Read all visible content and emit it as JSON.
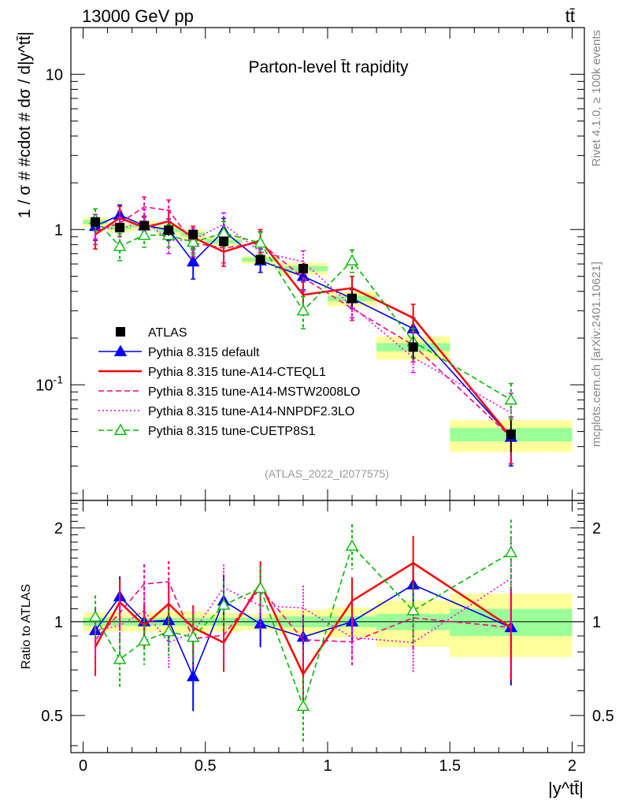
{
  "header": {
    "energy_label": "13000 GeV pp",
    "process_label": "tt̄",
    "side_top": "Rivet 4.1.0, ≥ 100k events",
    "side_bottom": "mcplots.cern.ch [arXiv:2401.10621]"
  },
  "chart_data": {
    "type": "line",
    "title": "Parton-level t̄t rapidity",
    "analysis_tag": "(ATLAS_2022_I2077575)",
    "xlabel": "|y^tt̄|",
    "ylabel": "1 / σ # #cdot # dσ / d|y^tt̄|",
    "ratio_ylabel": "Ratio to ATLAS",
    "xlim": [
      -0.05,
      2.05
    ],
    "ylim": [
      0.018,
      20
    ],
    "yscale": "log",
    "ratio_ylim": [
      0.38,
      2.45
    ],
    "x_ticks": [
      "0",
      "0.5",
      "1",
      "1.5",
      "2"
    ],
    "y_ticks": [
      "10",
      "1",
      "10^-1"
    ],
    "ratio_y_ticks": [
      "0.5",
      "1",
      "2"
    ],
    "bins": [
      [
        0,
        0.1
      ],
      [
        0.1,
        0.2
      ],
      [
        0.2,
        0.3
      ],
      [
        0.3,
        0.4
      ],
      [
        0.4,
        0.5
      ],
      [
        0.5,
        0.65
      ],
      [
        0.65,
        0.8
      ],
      [
        0.8,
        1.0
      ],
      [
        1.0,
        1.2
      ],
      [
        1.2,
        1.5
      ],
      [
        1.5,
        2.0
      ]
    ],
    "x": [
      0.05,
      0.15,
      0.25,
      0.35,
      0.45,
      0.575,
      0.725,
      0.9,
      1.1,
      1.35,
      1.75
    ],
    "data": {
      "name": "ATLAS",
      "values": [
        1.12,
        1.03,
        1.06,
        0.99,
        0.93,
        0.84,
        0.64,
        0.56,
        0.36,
        0.175,
        0.048
      ],
      "rel_stat": [
        0.03,
        0.03,
        0.03,
        0.03,
        0.03,
        0.03,
        0.03,
        0.04,
        0.04,
        0.06,
        0.1
      ],
      "rel_total": [
        0.07,
        0.07,
        0.07,
        0.08,
        0.08,
        0.07,
        0.06,
        0.09,
        0.11,
        0.17,
        0.23
      ]
    },
    "series": [
      {
        "name": "Pythia 8.315 default",
        "color": "#0000ff",
        "style": "solid",
        "marker": "triangle-filled",
        "values": [
          1.05,
          1.24,
          1.06,
          1.0,
          0.62,
          0.98,
          0.63,
          0.5,
          0.36,
          0.23,
          0.046
        ],
        "err_lo": [
          0.2,
          0.18,
          0.15,
          0.15,
          0.14,
          0.18,
          0.1,
          0.09,
          0.05,
          0.04,
          0.016
        ],
        "err_hi": [
          0.2,
          0.2,
          0.16,
          0.17,
          0.14,
          0.2,
          0.12,
          0.09,
          0.05,
          0.04,
          0.016
        ]
      },
      {
        "name": "Pythia 8.315 tune-A14-CTEQL1",
        "color": "#ff0000",
        "style": "solid",
        "marker": "none",
        "values": [
          0.93,
          1.19,
          1.03,
          1.13,
          0.89,
          0.72,
          0.85,
          0.38,
          0.42,
          0.27,
          0.046
        ],
        "err_lo": [
          0.18,
          0.2,
          0.16,
          0.18,
          0.15,
          0.14,
          0.14,
          0.07,
          0.07,
          0.05,
          0.015
        ],
        "err_hi": [
          0.2,
          0.22,
          0.17,
          0.2,
          0.16,
          0.15,
          0.15,
          0.08,
          0.08,
          0.06,
          0.016
        ]
      },
      {
        "name": "Pythia 8.315 tune-A14-MSTW2008LO",
        "color": "#ff0080",
        "style": "dashed",
        "marker": "none",
        "values": [
          0.98,
          1.1,
          1.4,
          1.33,
          0.82,
          0.76,
          0.82,
          0.49,
          0.31,
          0.18,
          0.046
        ],
        "err_lo": [
          0.18,
          0.2,
          0.2,
          0.2,
          0.15,
          0.15,
          0.14,
          0.09,
          0.05,
          0.04,
          0.015
        ],
        "err_hi": [
          0.2,
          0.22,
          0.22,
          0.22,
          0.16,
          0.16,
          0.15,
          0.09,
          0.06,
          0.04,
          0.016
        ]
      },
      {
        "name": "Pythia 8.315 tune-A14-NNPDF2.3LO",
        "color": "#ee00ee",
        "style": "dotted",
        "marker": "none",
        "values": [
          1.05,
          1.0,
          1.15,
          0.85,
          0.86,
          1.08,
          0.72,
          0.62,
          0.32,
          0.15,
          0.066
        ],
        "err_lo": [
          0.18,
          0.18,
          0.18,
          0.15,
          0.15,
          0.18,
          0.12,
          0.1,
          0.05,
          0.03,
          0.02
        ],
        "err_hi": [
          0.2,
          0.2,
          0.2,
          0.16,
          0.16,
          0.2,
          0.13,
          0.11,
          0.06,
          0.04,
          0.022
        ]
      },
      {
        "name": "Pythia 8.315 tune-CUETP8S1",
        "color": "#00bb00",
        "style": "dashed",
        "marker": "triangle-open",
        "values": [
          1.16,
          0.78,
          0.92,
          0.92,
          0.83,
          0.95,
          0.82,
          0.3,
          0.63,
          0.19,
          0.08
        ],
        "err_lo": [
          0.18,
          0.15,
          0.15,
          0.15,
          0.14,
          0.17,
          0.13,
          0.07,
          0.1,
          0.04,
          0.02
        ],
        "err_hi": [
          0.2,
          0.16,
          0.16,
          0.16,
          0.15,
          0.18,
          0.14,
          0.07,
          0.11,
          0.04,
          0.022
        ]
      }
    ]
  }
}
